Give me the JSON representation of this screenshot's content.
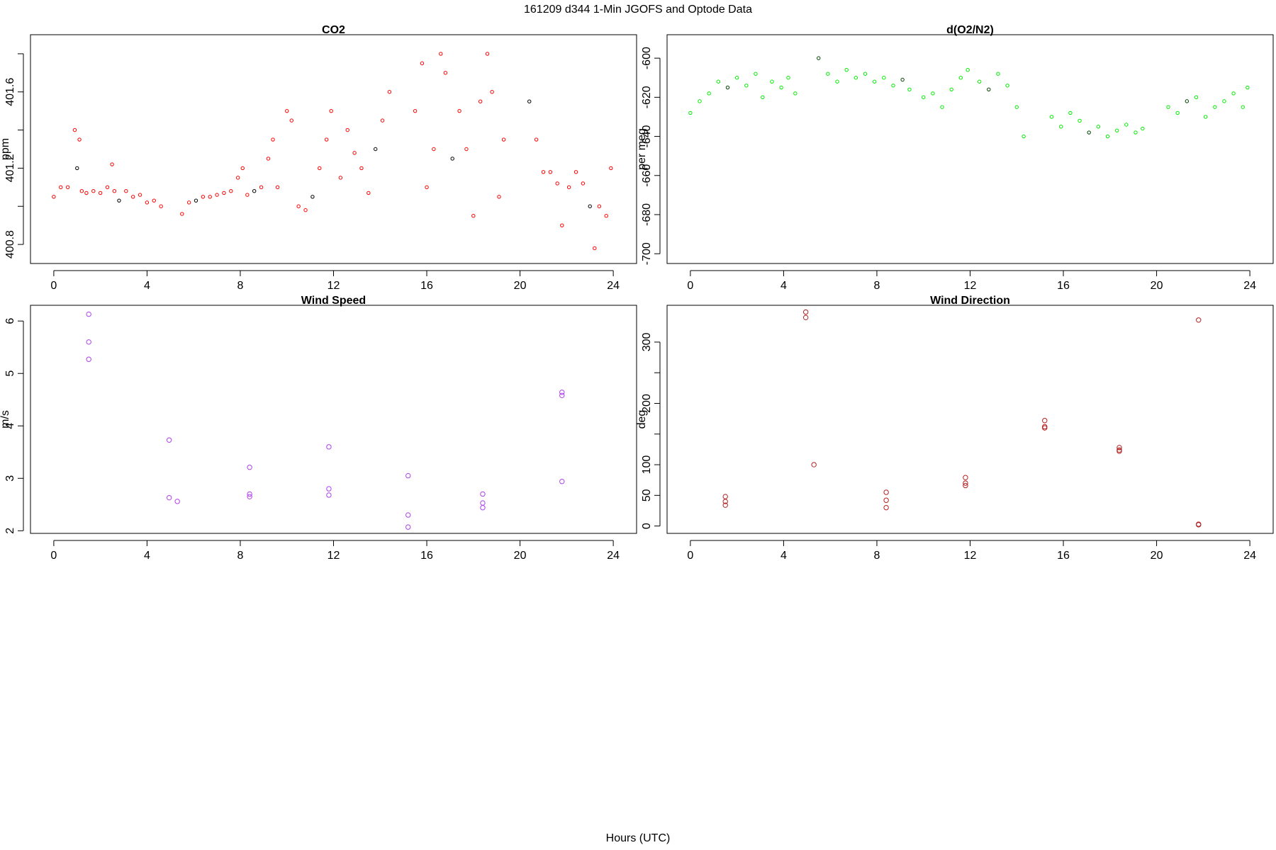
{
  "figure": {
    "title": "161209   d344   1-Min  JGOFS and Optode Data",
    "xlabel": "Hours (UTC)"
  },
  "chart_data": [
    {
      "id": "co2",
      "type": "scatter",
      "title": "CO2",
      "ylabel": "ppm",
      "xlim": [
        -1,
        25
      ],
      "ylim": [
        400.7,
        401.9
      ],
      "xticks": [
        0,
        4,
        8,
        12,
        16,
        20,
        24
      ],
      "yticks": [
        400.8,
        401.2,
        401.6
      ],
      "minor_yticks": [
        401.0,
        401.4,
        401.8
      ],
      "color": "#ff0000",
      "accent_color": "#000000",
      "x": [
        0.0,
        0.3,
        0.6,
        0.9,
        1.0,
        1.1,
        1.2,
        1.4,
        1.7,
        2.0,
        2.3,
        2.5,
        2.6,
        2.8,
        3.1,
        3.4,
        3.7,
        4.0,
        4.3,
        4.6,
        5.5,
        5.8,
        6.1,
        6.4,
        6.7,
        7.0,
        7.3,
        7.6,
        7.9,
        8.1,
        8.3,
        8.6,
        8.9,
        9.2,
        9.4,
        9.6,
        10.0,
        10.2,
        10.5,
        10.8,
        11.1,
        11.4,
        11.7,
        11.9,
        12.3,
        12.6,
        12.9,
        13.2,
        13.5,
        13.8,
        14.1,
        14.4,
        15.5,
        15.8,
        16.0,
        16.3,
        16.6,
        16.8,
        17.1,
        17.4,
        17.7,
        18.0,
        18.3,
        18.6,
        18.8,
        19.1,
        19.3,
        20.4,
        20.7,
        21.0,
        21.3,
        21.6,
        21.8,
        22.1,
        22.4,
        22.7,
        23.0,
        23.2,
        23.4,
        23.7,
        23.9
      ],
      "y": [
        401.05,
        401.1,
        401.1,
        401.4,
        401.2,
        401.35,
        401.08,
        401.07,
        401.08,
        401.07,
        401.1,
        401.22,
        401.08,
        401.03,
        401.08,
        401.05,
        401.06,
        401.02,
        401.03,
        401.0,
        400.96,
        401.02,
        401.03,
        401.05,
        401.05,
        401.06,
        401.07,
        401.08,
        401.15,
        401.2,
        401.06,
        401.08,
        401.1,
        401.25,
        401.35,
        401.1,
        401.5,
        401.45,
        401.0,
        400.98,
        401.05,
        401.2,
        401.35,
        401.5,
        401.15,
        401.4,
        401.28,
        401.2,
        401.07,
        401.3,
        401.45,
        401.6,
        401.5,
        401.75,
        401.1,
        401.3,
        401.8,
        401.7,
        401.25,
        401.5,
        401.3,
        400.95,
        401.55,
        401.8,
        401.6,
        401.05,
        401.35,
        401.55,
        401.35,
        401.18,
        401.18,
        401.12,
        400.9,
        401.1,
        401.18,
        401.12,
        401.0,
        400.78,
        401.0,
        400.95,
        401.2
      ]
    },
    {
      "id": "o2n2",
      "type": "scatter",
      "title": "d(O2/N2)",
      "ylabel": "per meg",
      "xlim": [
        -1,
        25
      ],
      "ylim": [
        -705,
        -588
      ],
      "xticks": [
        0,
        4,
        8,
        12,
        16,
        20,
        24
      ],
      "yticks": [
        -700,
        -680,
        -660,
        -640,
        -620,
        -600
      ],
      "color": "#00ee00",
      "accent_color": "#004400",
      "x": [
        0.0,
        0.4,
        0.8,
        1.2,
        1.6,
        2.0,
        2.4,
        2.8,
        3.1,
        3.5,
        3.9,
        4.2,
        4.5,
        5.5,
        5.9,
        6.3,
        6.7,
        7.1,
        7.5,
        7.9,
        8.3,
        8.7,
        9.1,
        9.4,
        10.0,
        10.4,
        10.8,
        11.2,
        11.6,
        11.9,
        12.4,
        12.8,
        13.2,
        13.6,
        14.0,
        14.3,
        15.5,
        15.9,
        16.3,
        16.7,
        17.1,
        17.5,
        17.9,
        18.3,
        18.7,
        19.1,
        19.4,
        20.5,
        20.9,
        21.3,
        21.7,
        22.1,
        22.5,
        22.9,
        23.3,
        23.7,
        23.9
      ],
      "y": [
        -628,
        -622,
        -618,
        -612,
        -615,
        -610,
        -614,
        -608,
        -620,
        -612,
        -615,
        -610,
        -618,
        -600,
        -608,
        -612,
        -606,
        -610,
        -608,
        -612,
        -610,
        -614,
        -611,
        -616,
        -620,
        -618,
        -625,
        -616,
        -610,
        -606,
        -612,
        -616,
        -608,
        -614,
        -625,
        -640,
        -630,
        -635,
        -628,
        -632,
        -638,
        -635,
        -640,
        -637,
        -634,
        -638,
        -636,
        -625,
        -628,
        -622,
        -620,
        -630,
        -625,
        -622,
        -618,
        -625,
        -615
      ]
    },
    {
      "id": "wind_speed",
      "type": "scatter",
      "title": "Wind Speed",
      "ylabel": "m/s",
      "xlim": [
        -1,
        25
      ],
      "ylim": [
        1.95,
        6.3
      ],
      "xticks": [
        0,
        4,
        8,
        12,
        16,
        20,
        24
      ],
      "yticks": [
        2,
        3,
        4,
        5,
        6
      ],
      "color": "#b040f0",
      "x": [
        1.5,
        1.5,
        1.5,
        4.95,
        4.95,
        5.3,
        8.4,
        8.4,
        8.4,
        11.8,
        11.8,
        11.8,
        15.2,
        15.2,
        15.2,
        18.4,
        18.4,
        18.4,
        21.8,
        21.8,
        21.8
      ],
      "y": [
        6.13,
        5.6,
        5.27,
        3.73,
        2.63,
        2.56,
        3.21,
        2.7,
        2.65,
        3.6,
        2.8,
        2.68,
        3.05,
        2.3,
        2.07,
        2.7,
        2.53,
        2.44,
        4.64,
        4.58,
        2.94
      ]
    },
    {
      "id": "wind_direction",
      "type": "scatter",
      "title": "Wind Direction",
      "ylabel": "deg",
      "xlim": [
        -1,
        25
      ],
      "ylim": [
        -12,
        360
      ],
      "xticks": [
        0,
        4,
        8,
        12,
        16,
        20,
        24
      ],
      "yticks": [
        0,
        50,
        100,
        200,
        300
      ],
      "minor_yticks": [
        150,
        250
      ],
      "color": "#b22222",
      "x": [
        1.5,
        1.5,
        1.5,
        4.95,
        4.95,
        5.3,
        8.4,
        8.4,
        8.4,
        11.8,
        11.8,
        11.8,
        15.2,
        15.2,
        15.2,
        18.4,
        18.4,
        18.4,
        21.8,
        21.8,
        21.8
      ],
      "y": [
        48,
        40,
        34,
        349,
        340,
        100,
        55,
        42,
        30,
        79,
        70,
        66,
        172,
        162,
        160,
        128,
        124,
        122,
        336,
        3,
        2
      ]
    }
  ]
}
